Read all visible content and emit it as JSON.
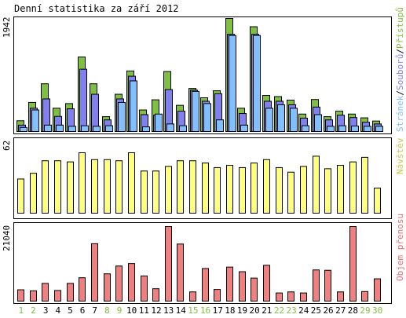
{
  "title": "Denní statistika za září 2012",
  "colors": {
    "pristupu": "#80c040",
    "souboru": "#8080f0",
    "stranek": "#80c0ff",
    "navstev": "#ffff80",
    "prenosu": "#f08080",
    "weekday": "#000000",
    "weekend": "#80c040"
  },
  "chart_data": [
    {
      "type": "bar",
      "panel": "requests",
      "ylabel_max": "1942",
      "ymax": 1942,
      "x": [
        "1",
        "2",
        "3",
        "4",
        "5",
        "6",
        "7",
        "8",
        "9",
        "10",
        "11",
        "12",
        "13",
        "14",
        "15",
        "16",
        "17",
        "18",
        "19",
        "20",
        "21",
        "22",
        "23",
        "24",
        "25",
        "26",
        "27",
        "28",
        "29",
        "30"
      ],
      "weekend_days": [
        "1",
        "2",
        "8",
        "9",
        "15",
        "16",
        "22",
        "23",
        "29",
        "30"
      ],
      "legend": [
        {
          "key": "pristupu",
          "label": "Přístupů"
        },
        {
          "key": "souboru",
          "label": "Souborů"
        },
        {
          "key": "stranek",
          "label": "Stránek"
        }
      ],
      "series": [
        {
          "name": "Přístupů",
          "key": "pristupu",
          "values": [
            185,
            500,
            820,
            400,
            480,
            1280,
            820,
            255,
            640,
            1040,
            370,
            545,
            1030,
            450,
            740,
            580,
            700,
            1942,
            400,
            1800,
            620,
            600,
            540,
            300,
            550,
            255,
            350,
            300,
            235,
            180
          ]
        },
        {
          "name": "Souborů",
          "key": "souboru",
          "values": [
            110,
            400,
            560,
            260,
            390,
            1070,
            640,
            200,
            560,
            950,
            290,
            280,
            720,
            350,
            710,
            520,
            650,
            1670,
            310,
            1670,
            520,
            520,
            460,
            230,
            420,
            200,
            280,
            240,
            160,
            130
          ]
        },
        {
          "name": "Stránek",
          "key": "stranek",
          "values": [
            70,
            370,
            110,
            110,
            90,
            100,
            90,
            100,
            500,
            870,
            80,
            300,
            130,
            100,
            690,
            480,
            200,
            1650,
            110,
            1650,
            400,
            460,
            400,
            100,
            290,
            90,
            100,
            95,
            90,
            90
          ]
        }
      ]
    },
    {
      "type": "bar",
      "panel": "visits",
      "ylabel_max": "62",
      "ymax": 62,
      "legend": [
        {
          "key": "navstev",
          "label": "Návštěv"
        }
      ],
      "series": [
        {
          "name": "Návštěv",
          "key": "navstev",
          "values": [
            30,
            35,
            46,
            46,
            45,
            53,
            47,
            47,
            46,
            53,
            37,
            37,
            41,
            46,
            46,
            44,
            40,
            42,
            40,
            44,
            47,
            40,
            36,
            41,
            50,
            39,
            42,
            45,
            49,
            22
          ]
        }
      ]
    },
    {
      "type": "bar",
      "panel": "traffic",
      "ylabel_max": "21040",
      "ymax": 21040,
      "legend": [
        {
          "key": "prenosu",
          "label": "Objem přenosu"
        }
      ],
      "series": [
        {
          "name": "Objem přenosu",
          "key": "prenosu",
          "values": [
            3200,
            2900,
            5000,
            3000,
            5000,
            6600,
            16200,
            7700,
            9900,
            10600,
            7100,
            3500,
            21040,
            16100,
            2600,
            9200,
            3300,
            9600,
            8300,
            6500,
            10100,
            2300,
            2600,
            2300,
            8800,
            8700,
            2600,
            21040,
            2700,
            6300
          ]
        }
      ]
    }
  ]
}
